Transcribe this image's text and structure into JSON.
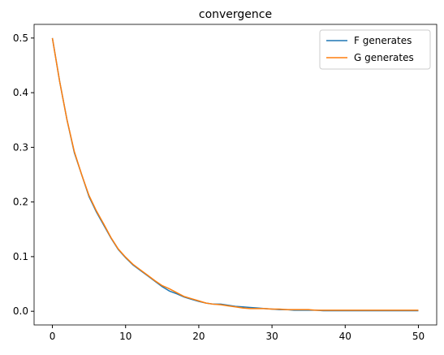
{
  "chart_data": {
    "type": "line",
    "title": "convergence",
    "x": [
      0,
      1,
      2,
      3,
      4,
      5,
      6,
      7,
      8,
      9,
      10,
      11,
      12,
      13,
      14,
      15,
      16,
      17,
      18,
      19,
      20,
      21,
      22,
      23,
      24,
      25,
      26,
      27,
      28,
      29,
      30,
      31,
      32,
      33,
      34,
      35,
      36,
      37,
      38,
      39,
      40,
      41,
      42,
      43,
      44,
      45,
      46,
      47,
      48,
      49,
      50
    ],
    "series": [
      {
        "name": "F generates",
        "color": "#1f77b4",
        "values": [
          0.5,
          0.42,
          0.35,
          0.29,
          0.25,
          0.21,
          0.182,
          0.158,
          0.134,
          0.113,
          0.098,
          0.085,
          0.075,
          0.065,
          0.055,
          0.045,
          0.037,
          0.032,
          0.026,
          0.022,
          0.018,
          0.015,
          0.013,
          0.013,
          0.011,
          0.009,
          0.008,
          0.007,
          0.006,
          0.005,
          0.004,
          0.003,
          0.003,
          0.002,
          0.002,
          0.002,
          0.002,
          0.001,
          0.001,
          0.001,
          0.001,
          0.001,
          0.001,
          0.001,
          0.001,
          0.001,
          0.001,
          0.001,
          0.001,
          0.001,
          0.001
        ]
      },
      {
        "name": "G generates",
        "color": "#ff7f0e",
        "values": [
          0.5,
          0.42,
          0.35,
          0.292,
          0.25,
          0.212,
          0.184,
          0.16,
          0.135,
          0.114,
          0.099,
          0.086,
          0.076,
          0.066,
          0.056,
          0.047,
          0.041,
          0.034,
          0.027,
          0.023,
          0.019,
          0.015,
          0.013,
          0.012,
          0.01,
          0.008,
          0.006,
          0.005,
          0.005,
          0.005,
          0.004,
          0.004,
          0.003,
          0.003,
          0.003,
          0.003,
          0.002,
          0.002,
          0.002,
          0.002,
          0.002,
          0.002,
          0.002,
          0.002,
          0.002,
          0.002,
          0.002,
          0.002,
          0.002,
          0.002,
          0.002
        ]
      }
    ],
    "xlim": [
      -2.5,
      52.5
    ],
    "xticks": [
      0,
      10,
      20,
      30,
      40,
      50
    ],
    "ylim": [
      -0.025,
      0.525
    ],
    "yticks": [
      {
        "value": 0,
        "label": "0.0"
      },
      0.1,
      0.2,
      0.3,
      0.4,
      0.5
    ],
    "legend": "upper right"
  }
}
